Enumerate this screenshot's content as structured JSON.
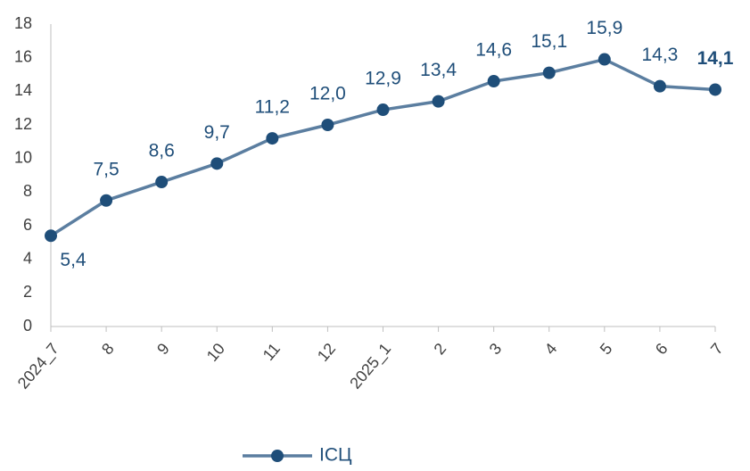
{
  "chart_data": {
    "type": "line",
    "categories": [
      "2024_7",
      "8",
      "9",
      "10",
      "11",
      "12",
      "2025_1",
      "2",
      "3",
      "4",
      "5",
      "6",
      "7"
    ],
    "series": [
      {
        "name": "ІСЦ",
        "color": "#5b7ea0",
        "marker_color": "#1f4e79",
        "values": [
          5.4,
          7.5,
          8.6,
          9.7,
          11.2,
          12.0,
          12.9,
          13.4,
          14.6,
          15.1,
          15.9,
          14.3,
          14.1
        ],
        "value_labels": [
          "5,4",
          "7,5",
          "8,6",
          "9,7",
          "11,2",
          "12,0",
          "12,9",
          "13,4",
          "14,6",
          "15,1",
          "15,9",
          "14,3",
          "14,1"
        ]
      }
    ],
    "bold_label_index": 12,
    "ylim": [
      0,
      18
    ],
    "yticks": [
      0,
      2,
      4,
      6,
      8,
      10,
      12,
      14,
      16,
      18
    ],
    "grid": false,
    "legend": "bottom"
  }
}
